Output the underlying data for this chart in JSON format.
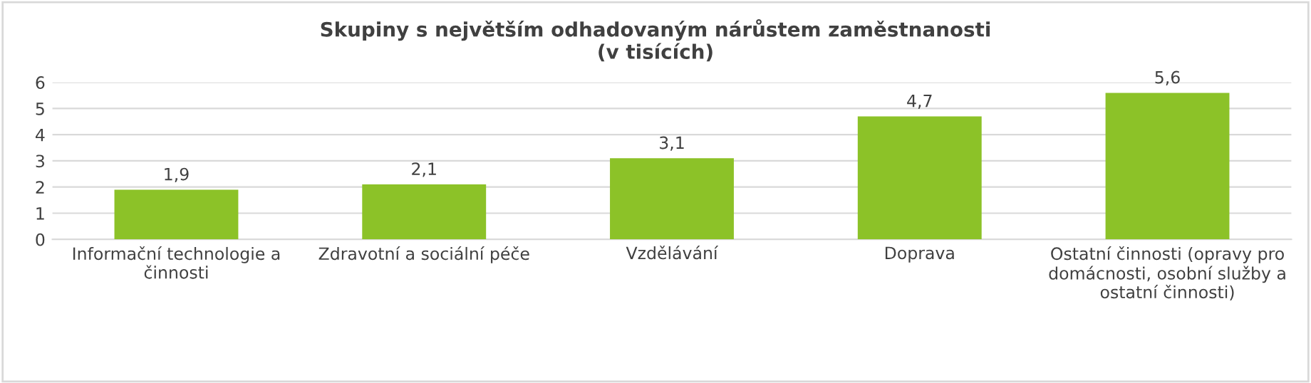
{
  "chart_data": {
    "type": "bar",
    "title": "Skupiny s největším odhadovaným nárůstem zaměstnanosti\n(v tisících)",
    "categories": [
      "Informační technologie a\nčinnosti",
      "Zdravotní a sociální péče",
      "Vzdělávání",
      "Doprava",
      "Ostatní činnosti (opravy pro\ndomácnosti, osobní služby a\nostatní činnosti)"
    ],
    "values": [
      1.9,
      2.1,
      3.1,
      4.7,
      5.6
    ],
    "value_labels": [
      "1,9",
      "2,1",
      "3,1",
      "4,7",
      "5,6"
    ],
    "color": "#8cc228",
    "ylim": [
      0,
      6
    ],
    "yticks": [
      0,
      1,
      2,
      3,
      4,
      5,
      6
    ],
    "grid": "y",
    "legend": false
  }
}
